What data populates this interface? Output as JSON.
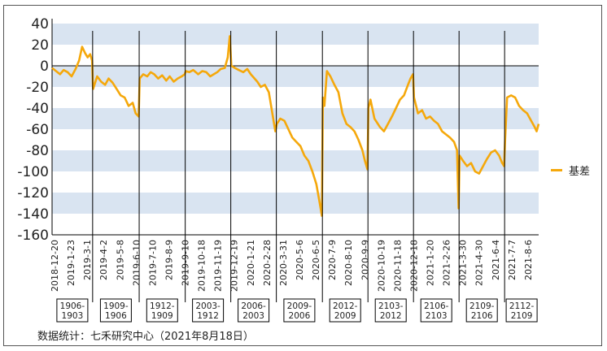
{
  "chart_data": {
    "type": "line",
    "legend_position": "right",
    "grid": "horizontal bands",
    "ylim": [
      -160,
      40
    ],
    "y_ticks": [
      40,
      20,
      0,
      -20,
      -40,
      -60,
      -80,
      -100,
      -120,
      -140,
      -160
    ],
    "x_ticks": [
      "2018-12-20",
      "2019-1-23",
      "2019-3-1",
      "2019-4-2",
      "2019-5-8",
      "2019-6-10",
      "2019-7-10",
      "2019-8-9",
      "2019-9-10",
      "2019-10-18",
      "2019-11-19",
      "2019-12-19",
      "2020-1-21",
      "2020-2-28",
      "2020-3-31",
      "2020-5-6",
      "2020-6-5",
      "2020-7-9",
      "2020-8-10",
      "2020-9-9",
      "2020-10-19",
      "2020-11-18",
      "2020-12-18",
      "2021-1-20",
      "2021-2-26",
      "2021-3-30",
      "2021-4-30",
      "2021-6-4",
      "2021-7-7",
      "2021-8-6"
    ],
    "x_range": [
      "2018-12-20",
      "2021-8-18"
    ],
    "contract_periods": [
      {
        "label": "1906-1903",
        "line1": "1906-",
        "line2": "1903",
        "start": "2018-12-20",
        "end": "2019-3-11"
      },
      {
        "label": "1909-1906",
        "line1": "1909-",
        "line2": "1906",
        "start": "2019-3-11",
        "end": "2019-6-12"
      },
      {
        "label": "1912-1909",
        "line1": "1912-",
        "line2": "1909",
        "start": "2019-6-12",
        "end": "2019-9-12"
      },
      {
        "label": "2003-1912",
        "line1": "2003-",
        "line2": "1912",
        "start": "2019-9-12",
        "end": "2019-12-12"
      },
      {
        "label": "2006-2003",
        "line1": "2006-",
        "line2": "2003",
        "start": "2019-12-12",
        "end": "2020-3-12"
      },
      {
        "label": "2009-2006",
        "line1": "2009-",
        "line2": "2006",
        "start": "2020-3-12",
        "end": "2020-6-12"
      },
      {
        "label": "2012-2009",
        "line1": "2012-",
        "line2": "2009",
        "start": "2020-6-12",
        "end": "2020-9-11"
      },
      {
        "label": "2103-2012",
        "line1": "2103-",
        "line2": "2012",
        "start": "2020-9-11",
        "end": "2020-12-11"
      },
      {
        "label": "2106-2103",
        "line1": "2106-",
        "line2": "2103",
        "start": "2020-12-11",
        "end": "2021-3-12"
      },
      {
        "label": "2109-2106",
        "line1": "2109-",
        "line2": "2106",
        "start": "2021-3-12",
        "end": "2021-6-11"
      },
      {
        "label": "2112-2109",
        "line1": "2112-",
        "line2": "2109",
        "start": "2021-6-11",
        "end": "2021-8-18"
      }
    ],
    "series": [
      {
        "name": "基差",
        "color": "#F5A80B",
        "points": [
          [
            "2018-12-20",
            -2
          ],
          [
            "2018-12-28",
            -5
          ],
          [
            "2019-1-5",
            -8
          ],
          [
            "2019-1-12",
            -4
          ],
          [
            "2019-1-20",
            -6
          ],
          [
            "2019-1-28",
            -10
          ],
          [
            "2019-2-5",
            -3
          ],
          [
            "2019-2-12",
            5
          ],
          [
            "2019-2-18",
            18
          ],
          [
            "2019-2-24",
            12
          ],
          [
            "2019-3-1",
            8
          ],
          [
            "2019-3-6",
            11
          ],
          [
            "2019-3-10",
            5
          ],
          [
            "2019-3-12",
            -22
          ],
          [
            "2019-3-20",
            -10
          ],
          [
            "2019-3-28",
            -15
          ],
          [
            "2019-4-5",
            -18
          ],
          [
            "2019-4-12",
            -12
          ],
          [
            "2019-4-20",
            -16
          ],
          [
            "2019-4-28",
            -22
          ],
          [
            "2019-5-6",
            -28
          ],
          [
            "2019-5-14",
            -30
          ],
          [
            "2019-5-22",
            -38
          ],
          [
            "2019-5-30",
            -35
          ],
          [
            "2019-6-5",
            -45
          ],
          [
            "2019-6-11",
            -48
          ],
          [
            "2019-6-13",
            -12
          ],
          [
            "2019-6-20",
            -8
          ],
          [
            "2019-6-28",
            -10
          ],
          [
            "2019-7-5",
            -6
          ],
          [
            "2019-7-12",
            -8
          ],
          [
            "2019-7-20",
            -12
          ],
          [
            "2019-7-28",
            -9
          ],
          [
            "2019-8-5",
            -14
          ],
          [
            "2019-8-12",
            -10
          ],
          [
            "2019-8-20",
            -15
          ],
          [
            "2019-8-28",
            -12
          ],
          [
            "2019-9-5",
            -10
          ],
          [
            "2019-9-11",
            -8
          ],
          [
            "2019-9-13",
            -5
          ],
          [
            "2019-9-20",
            -6
          ],
          [
            "2019-9-28",
            -4
          ],
          [
            "2019-10-8",
            -8
          ],
          [
            "2019-10-16",
            -5
          ],
          [
            "2019-10-24",
            -6
          ],
          [
            "2019-11-1",
            -10
          ],
          [
            "2019-11-8",
            -8
          ],
          [
            "2019-11-15",
            -6
          ],
          [
            "2019-11-22",
            -3
          ],
          [
            "2019-11-30",
            -2
          ],
          [
            "2019-12-6",
            8
          ],
          [
            "2019-12-10",
            28
          ],
          [
            "2019-12-13",
            0
          ],
          [
            "2019-12-20",
            -2
          ],
          [
            "2019-12-28",
            -4
          ],
          [
            "2020-1-6",
            -6
          ],
          [
            "2020-1-14",
            -3
          ],
          [
            "2020-1-21",
            -8
          ],
          [
            "2020-2-3",
            -15
          ],
          [
            "2020-2-10",
            -20
          ],
          [
            "2020-2-18",
            -18
          ],
          [
            "2020-2-26",
            -25
          ],
          [
            "2020-3-4",
            -45
          ],
          [
            "2020-3-10",
            -62
          ],
          [
            "2020-3-13",
            -55
          ],
          [
            "2020-3-20",
            -50
          ],
          [
            "2020-3-28",
            -52
          ],
          [
            "2020-4-5",
            -60
          ],
          [
            "2020-4-13",
            -68
          ],
          [
            "2020-4-21",
            -72
          ],
          [
            "2020-4-29",
            -76
          ],
          [
            "2020-5-7",
            -85
          ],
          [
            "2020-5-15",
            -90
          ],
          [
            "2020-5-23",
            -100
          ],
          [
            "2020-5-31",
            -112
          ],
          [
            "2020-6-6",
            -128
          ],
          [
            "2020-6-11",
            -142
          ],
          [
            "2020-6-13",
            -30
          ],
          [
            "2020-6-16",
            -38
          ],
          [
            "2020-6-21",
            -5
          ],
          [
            "2020-6-28",
            -10
          ],
          [
            "2020-7-6",
            -18
          ],
          [
            "2020-7-14",
            -25
          ],
          [
            "2020-7-22",
            -45
          ],
          [
            "2020-7-30",
            -55
          ],
          [
            "2020-8-7",
            -58
          ],
          [
            "2020-8-15",
            -62
          ],
          [
            "2020-8-23",
            -70
          ],
          [
            "2020-8-31",
            -80
          ],
          [
            "2020-9-5",
            -90
          ],
          [
            "2020-9-10",
            -98
          ],
          [
            "2020-9-12",
            -40
          ],
          [
            "2020-9-16",
            -32
          ],
          [
            "2020-9-24",
            -50
          ],
          [
            "2020-10-5",
            -58
          ],
          [
            "2020-10-13",
            -62
          ],
          [
            "2020-10-21",
            -55
          ],
          [
            "2020-10-29",
            -48
          ],
          [
            "2020-11-6",
            -40
          ],
          [
            "2020-11-14",
            -32
          ],
          [
            "2020-11-22",
            -28
          ],
          [
            "2020-11-30",
            -18
          ],
          [
            "2020-12-5",
            -12
          ],
          [
            "2020-12-10",
            -8
          ],
          [
            "2020-12-12",
            -30
          ],
          [
            "2020-12-20",
            -45
          ],
          [
            "2020-12-28",
            -42
          ],
          [
            "2021-1-5",
            -50
          ],
          [
            "2021-1-13",
            -48
          ],
          [
            "2021-1-21",
            -52
          ],
          [
            "2021-1-29",
            -55
          ],
          [
            "2021-2-6",
            -62
          ],
          [
            "2021-2-14",
            -65
          ],
          [
            "2021-2-22",
            -68
          ],
          [
            "2021-3-2",
            -72
          ],
          [
            "2021-3-8",
            -80
          ],
          [
            "2021-3-11",
            -135
          ],
          [
            "2021-3-13",
            -85
          ],
          [
            "2021-3-20",
            -90
          ],
          [
            "2021-3-28",
            -95
          ],
          [
            "2021-4-5",
            -92
          ],
          [
            "2021-4-13",
            -100
          ],
          [
            "2021-4-21",
            -102
          ],
          [
            "2021-4-29",
            -95
          ],
          [
            "2021-5-7",
            -88
          ],
          [
            "2021-5-15",
            -82
          ],
          [
            "2021-5-23",
            -80
          ],
          [
            "2021-5-31",
            -85
          ],
          [
            "2021-6-6",
            -92
          ],
          [
            "2021-6-10",
            -95
          ],
          [
            "2021-6-12",
            -70
          ],
          [
            "2021-6-16",
            -30
          ],
          [
            "2021-6-24",
            -28
          ],
          [
            "2021-7-2",
            -30
          ],
          [
            "2021-7-10",
            -38
          ],
          [
            "2021-7-18",
            -42
          ],
          [
            "2021-7-26",
            -45
          ],
          [
            "2021-8-3",
            -52
          ],
          [
            "2021-8-10",
            -58
          ],
          [
            "2021-8-14",
            -62
          ],
          [
            "2021-8-18",
            -55
          ]
        ]
      }
    ]
  },
  "legend": {
    "label": "基差",
    "color": "#F5A80B"
  },
  "source_note": "数据统计：七禾研究中心（2021年8月18日）",
  "colors": {
    "band": "#D9E4F1",
    "line": "#F5A80B",
    "axis": "#000000"
  }
}
